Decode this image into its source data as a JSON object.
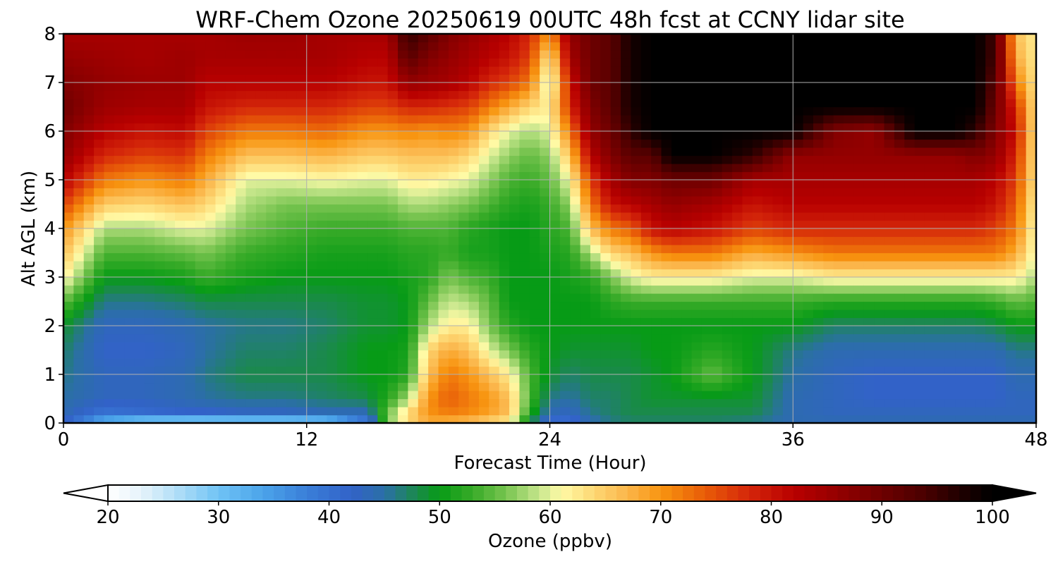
{
  "chart_data": {
    "type": "heatmap",
    "title": "WRF-Chem Ozone  20250619 00UTC 48h fcst at CCNY lidar site",
    "xlabel": "Forecast Time (Hour)",
    "ylabel": "Alt AGL (km)",
    "xlim": [
      0,
      48
    ],
    "ylim": [
      0,
      8
    ],
    "xticks": [
      0,
      12,
      24,
      36,
      48
    ],
    "yticks": [
      0,
      1,
      2,
      3,
      4,
      5,
      6,
      7,
      8
    ],
    "grid": true,
    "colorbar": {
      "label": "Ozone  (ppbv)",
      "orientation": "horizontal",
      "range": [
        20,
        100
      ],
      "ticks": [
        20,
        30,
        40,
        50,
        60,
        70,
        80,
        90,
        100
      ],
      "extend": "both",
      "stops": [
        {
          "v": 20,
          "c": "#ffffff"
        },
        {
          "v": 23,
          "c": "#e6f3fb"
        },
        {
          "v": 26,
          "c": "#b5e0f7"
        },
        {
          "v": 30,
          "c": "#70c3f5"
        },
        {
          "v": 34,
          "c": "#4ba4ea"
        },
        {
          "v": 38,
          "c": "#3a7ed8"
        },
        {
          "v": 42,
          "c": "#3262c8"
        },
        {
          "v": 45,
          "c": "#2b6fa6"
        },
        {
          "v": 48,
          "c": "#1a8a4a"
        },
        {
          "v": 50,
          "c": "#079b16"
        },
        {
          "v": 53,
          "c": "#38ab28"
        },
        {
          "v": 56,
          "c": "#78c450"
        },
        {
          "v": 59,
          "c": "#c6e68c"
        },
        {
          "v": 61,
          "c": "#fffaa6"
        },
        {
          "v": 64,
          "c": "#fdd773"
        },
        {
          "v": 67,
          "c": "#fbb54a"
        },
        {
          "v": 70,
          "c": "#f89510"
        },
        {
          "v": 74,
          "c": "#e85c08"
        },
        {
          "v": 78,
          "c": "#d4260a"
        },
        {
          "v": 82,
          "c": "#b80000"
        },
        {
          "v": 86,
          "c": "#940000"
        },
        {
          "v": 90,
          "c": "#6e0000"
        },
        {
          "v": 94,
          "c": "#480000"
        },
        {
          "v": 97,
          "c": "#200000"
        },
        {
          "v": 100,
          "c": "#000000"
        }
      ]
    },
    "x": [
      0,
      2,
      4,
      6,
      7,
      9,
      11,
      13,
      15,
      16,
      17,
      18,
      19,
      20,
      21,
      22,
      23,
      24,
      25,
      26,
      27,
      28,
      29,
      30,
      32,
      34,
      36,
      38,
      40,
      42,
      44,
      45,
      46,
      47,
      48
    ],
    "y": [
      0,
      0.25,
      0.5,
      1,
      1.5,
      2,
      2.5,
      3,
      3.5,
      4,
      4.5,
      5,
      5.5,
      6,
      6.5,
      7,
      7.5,
      8
    ],
    "z": [
      [
        42,
        44,
        45,
        46,
        47,
        49,
        55,
        62,
        66,
        70,
        76,
        82,
        86,
        88,
        90,
        88,
        86,
        84
      ],
      [
        32,
        40,
        43,
        43,
        42,
        43,
        46,
        50,
        54,
        58,
        65,
        72,
        78,
        82,
        85,
        86,
        85,
        84
      ],
      [
        28,
        41,
        43,
        43,
        42,
        43,
        46,
        50,
        54,
        58,
        64,
        70,
        76,
        80,
        84,
        85,
        84,
        84
      ],
      [
        27,
        42,
        44,
        44,
        43,
        44,
        47,
        51,
        55,
        60,
        66,
        72,
        77,
        81,
        84,
        85,
        85,
        84
      ],
      [
        27,
        42,
        45,
        46,
        45,
        45,
        48,
        53,
        56,
        60,
        64,
        68,
        72,
        76,
        80,
        82,
        84,
        84
      ],
      [
        27,
        43,
        46,
        48,
        47,
        46,
        48,
        51,
        53,
        56,
        58,
        60,
        66,
        72,
        78,
        82,
        84,
        85
      ],
      [
        27,
        43,
        46,
        48,
        47,
        46,
        48,
        50,
        52,
        54,
        56,
        60,
        66,
        72,
        78,
        82,
        84,
        85
      ],
      [
        28,
        44,
        47,
        48,
        48,
        47,
        48,
        50,
        51,
        53,
        56,
        61,
        67,
        73,
        78,
        82,
        84,
        84
      ],
      [
        38,
        44,
        48,
        50,
        50,
        49,
        49,
        50,
        51,
        53,
        56,
        60,
        65,
        70,
        76,
        80,
        82,
        84
      ],
      [
        56,
        55,
        52,
        50,
        50,
        49,
        49,
        50,
        51,
        53,
        56,
        60,
        65,
        70,
        76,
        80,
        82,
        84
      ],
      [
        64,
        63,
        58,
        52,
        51,
        50,
        50,
        51,
        52,
        54,
        58,
        62,
        66,
        71,
        78,
        86,
        92,
        96
      ],
      [
        68,
        70,
        70,
        66,
        64,
        58,
        55,
        52,
        52,
        54,
        58,
        62,
        66,
        70,
        78,
        85,
        88,
        92
      ],
      [
        67,
        72,
        74,
        72,
        68,
        62,
        59,
        56,
        53,
        54,
        57,
        61,
        66,
        71,
        77,
        84,
        86,
        88
      ],
      [
        66,
        71,
        72,
        70,
        66,
        62,
        58,
        54,
        51,
        52,
        56,
        60,
        64,
        70,
        76,
        82,
        84,
        86
      ],
      [
        64,
        69,
        70,
        66,
        60,
        56,
        55,
        53,
        51,
        51,
        54,
        57,
        60,
        64,
        72,
        78,
        82,
        84
      ],
      [
        62,
        66,
        66,
        62,
        56,
        52,
        50,
        50,
        50,
        50,
        52,
        54,
        57,
        60,
        68,
        76,
        80,
        82
      ],
      [
        48,
        52,
        54,
        54,
        52,
        50,
        50,
        50,
        50,
        50,
        51,
        53,
        55,
        58,
        64,
        72,
        76,
        78
      ],
      [
        40,
        44,
        46,
        49,
        50,
        50,
        50,
        50,
        51,
        52,
        53,
        55,
        57,
        60,
        62,
        58,
        62,
        70
      ],
      [
        40,
        43,
        45,
        47,
        49,
        50,
        50,
        51,
        52,
        54,
        57,
        61,
        66,
        72,
        78,
        80,
        84,
        86
      ],
      [
        44,
        46,
        47,
        48,
        49,
        50,
        50,
        52,
        58,
        66,
        72,
        76,
        82,
        86,
        88,
        90,
        90,
        90
      ],
      [
        46,
        47,
        47,
        48,
        49,
        50,
        52,
        56,
        64,
        72,
        80,
        84,
        88,
        90,
        92,
        92,
        92,
        92
      ],
      [
        47,
        48,
        48,
        48,
        49,
        50,
        53,
        60,
        66,
        74,
        82,
        88,
        92,
        96,
        98,
        98,
        98,
        98
      ],
      [
        47,
        48,
        49,
        49,
        50,
        50,
        53,
        62,
        70,
        80,
        84,
        88,
        92,
        100,
        100,
        100,
        100,
        100
      ],
      [
        47,
        48,
        49,
        50,
        50,
        50,
        53,
        62,
        72,
        82,
        86,
        90,
        100,
        100,
        100,
        100,
        100,
        100
      ],
      [
        47,
        48,
        49,
        55,
        52,
        50,
        53,
        62,
        72,
        80,
        84,
        90,
        100,
        100,
        100,
        100,
        100,
        100
      ],
      [
        46,
        48,
        49,
        50,
        50,
        50,
        53,
        60,
        68,
        76,
        80,
        84,
        96,
        100,
        100,
        100,
        100,
        100
      ],
      [
        44,
        44,
        44,
        45,
        46,
        50,
        53,
        60,
        70,
        78,
        82,
        84,
        86,
        100,
        100,
        100,
        100,
        100
      ],
      [
        44,
        43,
        43,
        43,
        44,
        47,
        52,
        62,
        72,
        78,
        82,
        84,
        86,
        88,
        100,
        100,
        100,
        100
      ],
      [
        44,
        43,
        42,
        42,
        44,
        47,
        52,
        62,
        72,
        78,
        82,
        84,
        86,
        86,
        100,
        100,
        100,
        100
      ],
      [
        44,
        43,
        42,
        42,
        44,
        47,
        52,
        62,
        72,
        78,
        82,
        84,
        86,
        100,
        100,
        100,
        100,
        100
      ],
      [
        44,
        43,
        42,
        42,
        44,
        47,
        52,
        62,
        72,
        78,
        82,
        84,
        86,
        100,
        100,
        100,
        100,
        100
      ],
      [
        44,
        43,
        42,
        42,
        44,
        47,
        52,
        62,
        72,
        78,
        82,
        84,
        88,
        96,
        100,
        100,
        100,
        100
      ],
      [
        44,
        43,
        42,
        42,
        44,
        48,
        53,
        62,
        72,
        76,
        80,
        82,
        86,
        88,
        90,
        92,
        94,
        94
      ],
      [
        44,
        43,
        43,
        44,
        46,
        50,
        55,
        62,
        68,
        72,
        74,
        76,
        78,
        80,
        78,
        72,
        68,
        66
      ],
      [
        44,
        43,
        43,
        44,
        46,
        50,
        54,
        58,
        60,
        60,
        61,
        62,
        62,
        62,
        62,
        62,
        62,
        62
      ]
    ]
  }
}
